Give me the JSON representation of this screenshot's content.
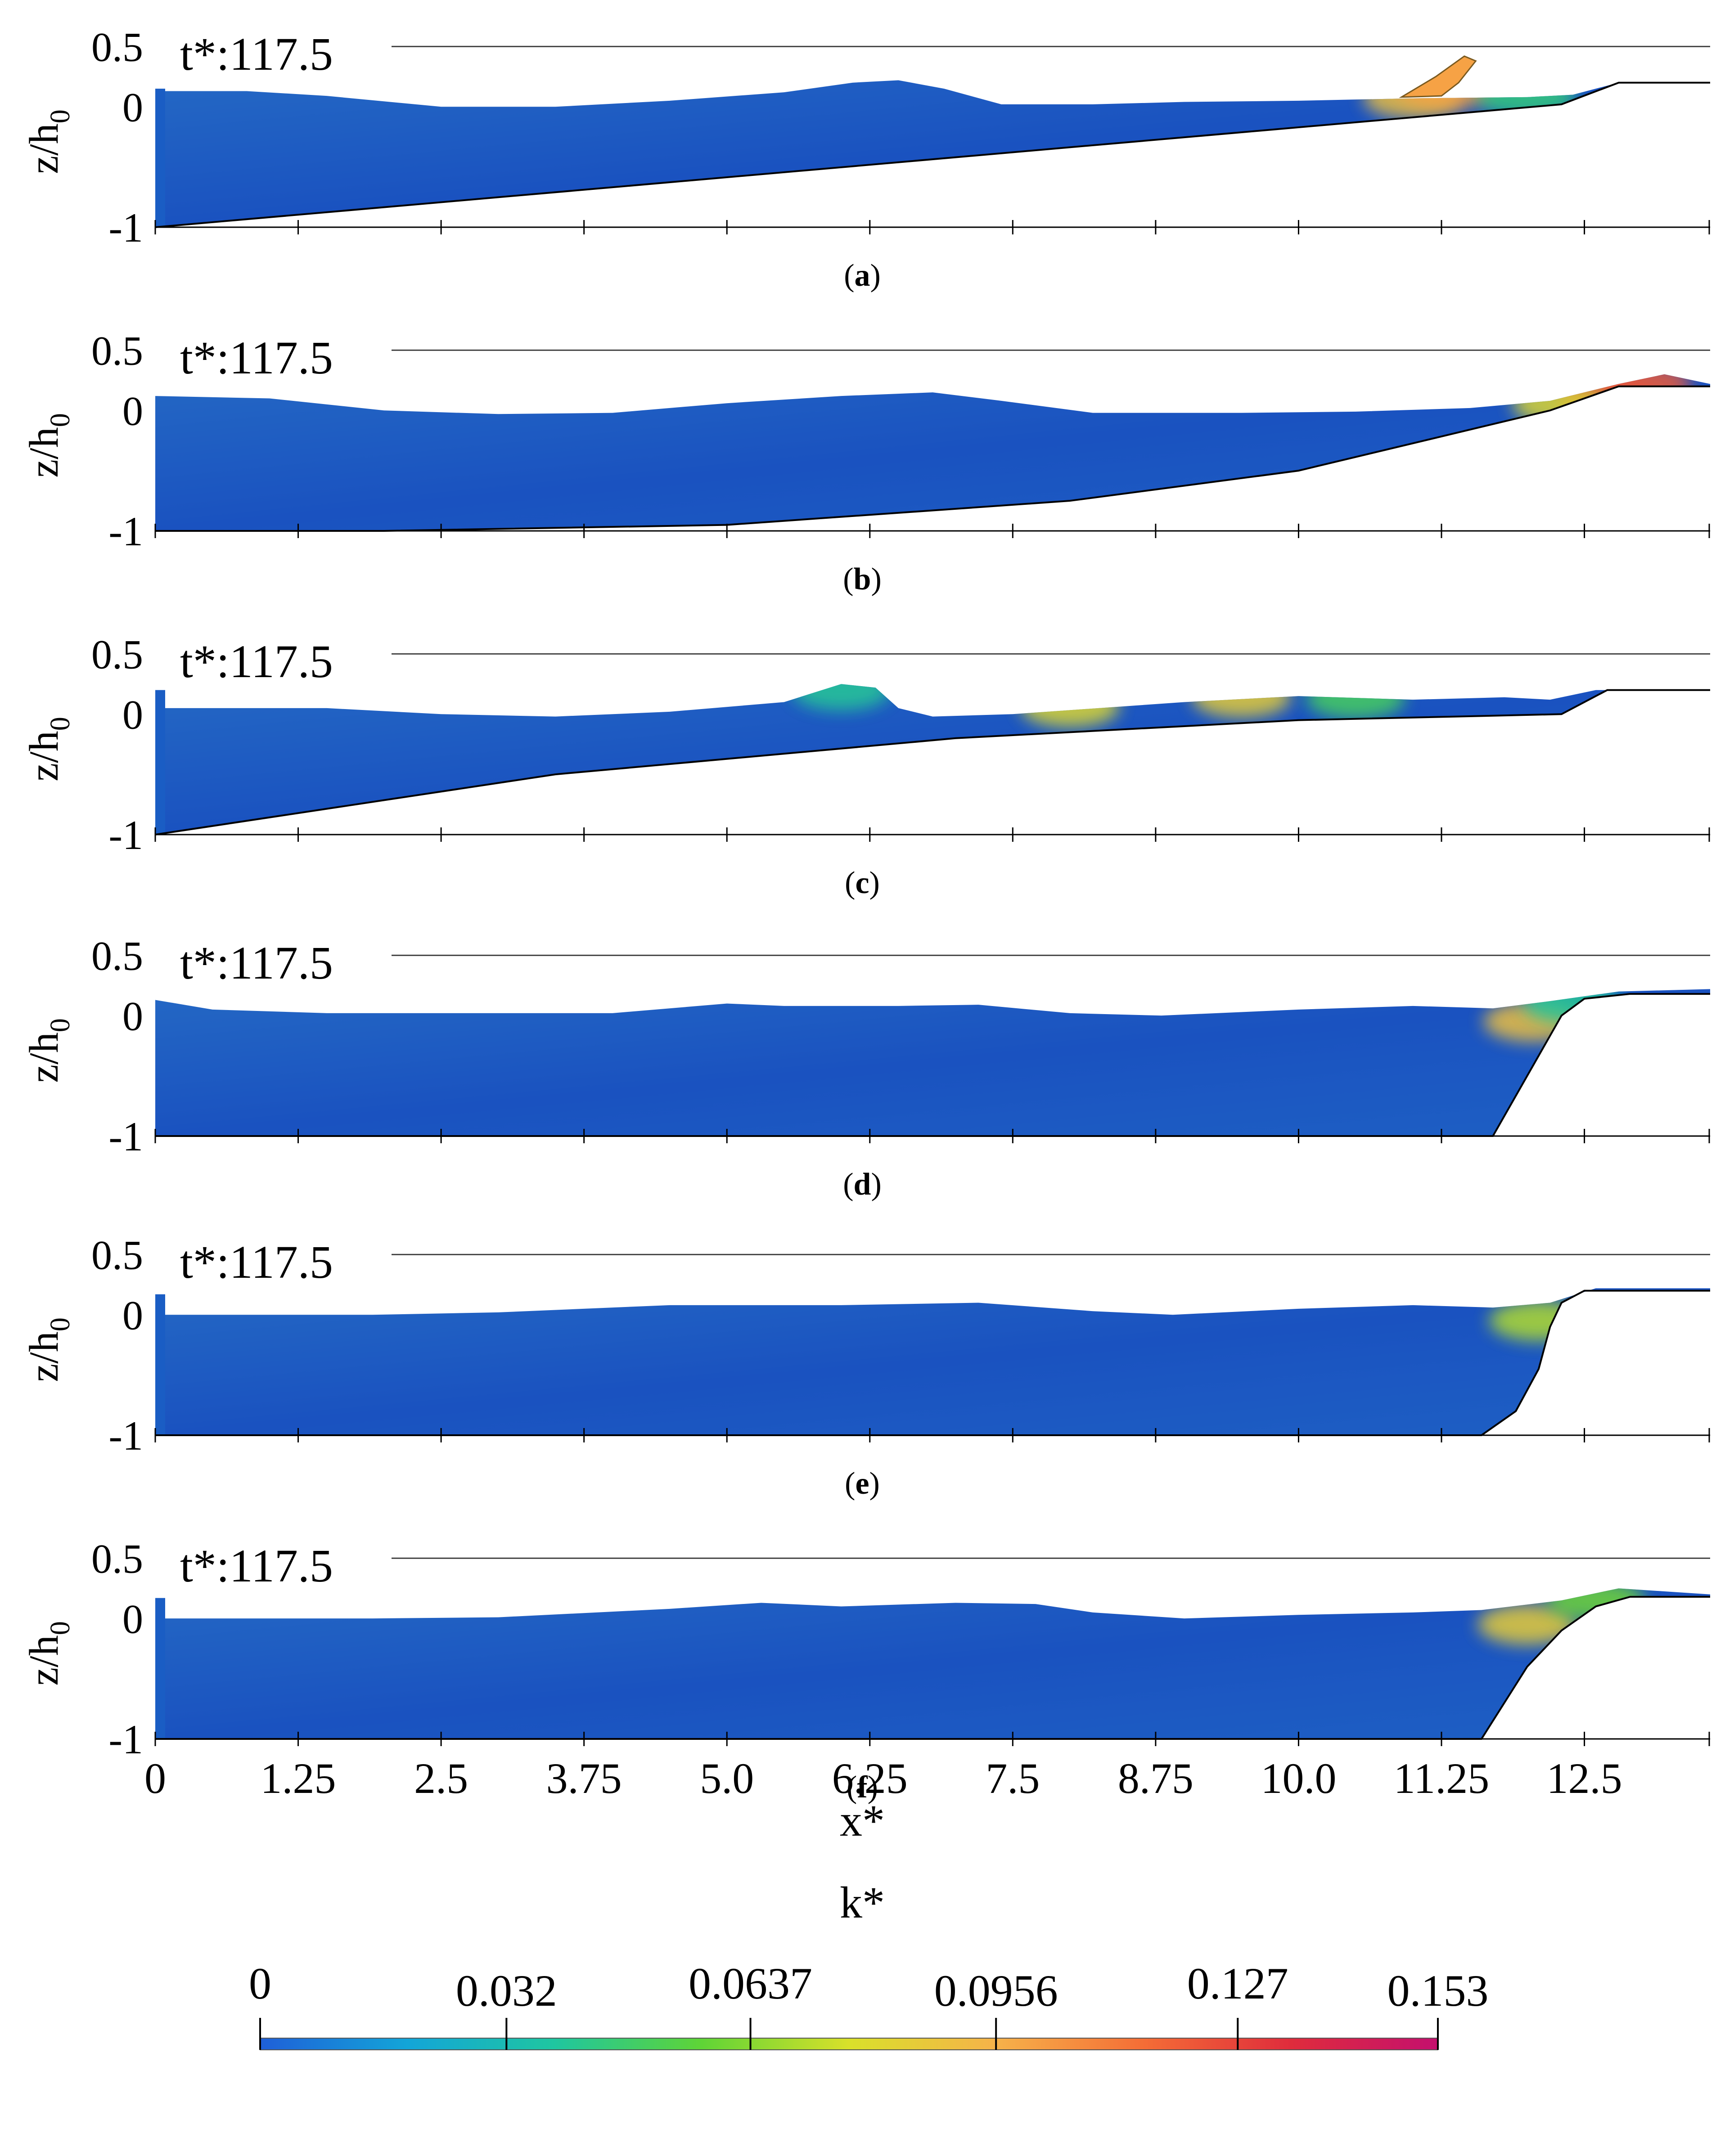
{
  "chart_data": {
    "type": "area",
    "y_axis_label": "z/h",
    "y_axis_label_sub": "0",
    "y_ticks": [
      "0.5",
      "0",
      "-1"
    ],
    "y_tick_values": [
      0.5,
      0,
      -1
    ],
    "x_label": "x*",
    "x_ticks": [
      "0",
      "1.25",
      "2.5",
      "3.75",
      "5.0",
      "6.25",
      "7.5",
      "8.75",
      "10.0",
      "11.25",
      "12.5"
    ],
    "x_tick_values": [
      0,
      1.25,
      2.5,
      3.75,
      5.0,
      6.25,
      7.5,
      8.75,
      10.0,
      11.25,
      12.5
    ],
    "x_range": [
      0,
      13.6
    ],
    "y_range": [
      -1,
      0.55
    ],
    "panels": [
      {
        "caption": "a",
        "time_label": "t*:117.5",
        "wall": [
          0,
          0.15
        ],
        "surface": [
          [
            0,
            0.13
          ],
          [
            0.8,
            0.13
          ],
          [
            1.5,
            0.09
          ],
          [
            2.5,
            0.0
          ],
          [
            3.5,
            0.0
          ],
          [
            4.5,
            0.05
          ],
          [
            5.5,
            0.12
          ],
          [
            6.1,
            0.2
          ],
          [
            6.5,
            0.22
          ],
          [
            6.9,
            0.15
          ],
          [
            7.4,
            0.02
          ],
          [
            8.2,
            0.02
          ],
          [
            9,
            0.04
          ],
          [
            10,
            0.05
          ],
          [
            11,
            0.07
          ],
          [
            12.0,
            0.08
          ],
          [
            12.4,
            0.1
          ],
          [
            12.8,
            0.2
          ],
          [
            13.6,
            0.2
          ]
        ],
        "bed": [
          [
            0,
            -1
          ],
          [
            12.3,
            0.02
          ],
          [
            12.8,
            0.2
          ],
          [
            13.6,
            0.2
          ]
        ],
        "hotspots": [
          {
            "x": 11.0,
            "z": 0.07,
            "k": 0.09
          },
          {
            "x": 11.3,
            "z": 0.15,
            "k": 0.1
          },
          {
            "x": 12.0,
            "z": 0.08,
            "k": 0.045
          }
        ],
        "crest": [
          [
            10.9,
            0.08
          ],
          [
            11.2,
            0.25
          ],
          [
            11.45,
            0.42
          ],
          [
            11.55,
            0.38
          ],
          [
            11.4,
            0.2
          ],
          [
            11.25,
            0.09
          ]
        ]
      },
      {
        "caption": "b",
        "time_label": "t*:117.5",
        "wall": null,
        "surface": [
          [
            0,
            0.12
          ],
          [
            1,
            0.1
          ],
          [
            2,
            0.0
          ],
          [
            3,
            -0.03
          ],
          [
            4,
            -0.02
          ],
          [
            5,
            0.06
          ],
          [
            6,
            0.12
          ],
          [
            6.8,
            0.15
          ],
          [
            7.4,
            0.08
          ],
          [
            8.2,
            -0.02
          ],
          [
            9.5,
            -0.02
          ],
          [
            10.5,
            -0.01
          ],
          [
            11.5,
            0.02
          ],
          [
            12.2,
            0.08
          ],
          [
            12.8,
            0.22
          ],
          [
            13.2,
            0.3
          ],
          [
            13.6,
            0.22
          ]
        ],
        "bed": [
          [
            0,
            -1
          ],
          [
            2,
            -1.0
          ],
          [
            5,
            -0.95
          ],
          [
            8,
            -0.75
          ],
          [
            10,
            -0.5
          ],
          [
            12.2,
            0.0
          ],
          [
            12.8,
            0.2
          ],
          [
            13.6,
            0.2
          ]
        ],
        "hotspots": [
          {
            "x": 12.7,
            "z": 0.1,
            "k": 0.13
          },
          {
            "x": 13.0,
            "z": 0.22,
            "k": 0.12
          },
          {
            "x": 12.3,
            "z": 0.05,
            "k": 0.08
          }
        ],
        "crest": []
      },
      {
        "caption": "c",
        "time_label": "t*:117.5",
        "wall": [
          0,
          0.2
        ],
        "surface": [
          [
            0,
            0.05
          ],
          [
            1.5,
            0.05
          ],
          [
            2.5,
            0.0
          ],
          [
            3.5,
            -0.02
          ],
          [
            4.5,
            0.02
          ],
          [
            5.5,
            0.1
          ],
          [
            6.0,
            0.25
          ],
          [
            6.3,
            0.22
          ],
          [
            6.5,
            0.05
          ],
          [
            6.8,
            -0.02
          ],
          [
            7.5,
            0.0
          ],
          [
            9,
            0.1
          ],
          [
            10,
            0.15
          ],
          [
            11,
            0.12
          ],
          [
            11.8,
            0.14
          ],
          [
            12.2,
            0.12
          ],
          [
            12.6,
            0.2
          ],
          [
            13.6,
            0.2
          ]
        ],
        "bed": [
          [
            0,
            -1
          ],
          [
            3.5,
            -0.5
          ],
          [
            7,
            -0.2
          ],
          [
            10,
            -0.05
          ],
          [
            12.3,
            0.0
          ],
          [
            12.7,
            0.2
          ],
          [
            13.6,
            0.2
          ]
        ],
        "hotspots": [
          {
            "x": 6.0,
            "z": 0.2,
            "k": 0.04
          },
          {
            "x": 8.0,
            "z": 0.06,
            "k": 0.08
          },
          {
            "x": 9.5,
            "z": 0.14,
            "k": 0.085
          },
          {
            "x": 10.5,
            "z": 0.13,
            "k": 0.05
          }
        ],
        "crest": []
      },
      {
        "caption": "d",
        "time_label": "t*:117.5",
        "wall": null,
        "surface": [
          [
            0,
            0.13
          ],
          [
            0.5,
            0.05
          ],
          [
            1.5,
            0.02
          ],
          [
            3,
            0.02
          ],
          [
            4,
            0.02
          ],
          [
            5,
            0.1
          ],
          [
            5.5,
            0.08
          ],
          [
            6.5,
            0.08
          ],
          [
            7.2,
            0.09
          ],
          [
            8,
            0.02
          ],
          [
            8.8,
            0.0
          ],
          [
            10,
            0.05
          ],
          [
            11,
            0.08
          ],
          [
            11.7,
            0.06
          ],
          [
            12.2,
            0.12
          ],
          [
            12.8,
            0.2
          ],
          [
            13.6,
            0.22
          ]
        ],
        "bed": [
          [
            0,
            -1
          ],
          [
            11.7,
            -1
          ],
          [
            12.3,
            0.0
          ],
          [
            12.5,
            0.14
          ],
          [
            12.9,
            0.18
          ],
          [
            13.6,
            0.18
          ]
        ],
        "hotspots": [
          {
            "x": 12.05,
            "z": -0.05,
            "k": 0.09
          },
          {
            "x": 12.4,
            "z": 0.1,
            "k": 0.04
          }
        ],
        "crest": []
      },
      {
        "caption": "e",
        "time_label": "t*:117.5",
        "wall": [
          0,
          0.17
        ],
        "surface": [
          [
            0,
            0.0
          ],
          [
            1.9,
            0.0
          ],
          [
            3,
            0.02
          ],
          [
            4.5,
            0.08
          ],
          [
            6,
            0.08
          ],
          [
            7.2,
            0.1
          ],
          [
            8.2,
            0.03
          ],
          [
            8.9,
            0.0
          ],
          [
            10,
            0.05
          ],
          [
            11,
            0.08
          ],
          [
            11.7,
            0.06
          ],
          [
            12.2,
            0.1
          ],
          [
            12.6,
            0.22
          ],
          [
            13.6,
            0.22
          ]
        ],
        "bed": [
          [
            0,
            -1
          ],
          [
            11.6,
            -1
          ],
          [
            11.9,
            -0.8
          ],
          [
            12.1,
            -0.45
          ],
          [
            12.2,
            -0.1
          ],
          [
            12.3,
            0.1
          ],
          [
            12.5,
            0.2
          ],
          [
            12.9,
            0.2
          ],
          [
            13.6,
            0.2
          ]
        ],
        "hotspots": [
          {
            "x": 12.1,
            "z": -0.05,
            "k": 0.07
          }
        ],
        "crest": []
      },
      {
        "caption": "f",
        "time_label": "t*:117.5",
        "wall": [
          0,
          0.17
        ],
        "surface": [
          [
            0,
            0.0
          ],
          [
            1.9,
            0.0
          ],
          [
            3,
            0.01
          ],
          [
            4.5,
            0.08
          ],
          [
            5.3,
            0.13
          ],
          [
            6,
            0.1
          ],
          [
            7,
            0.13
          ],
          [
            7.7,
            0.12
          ],
          [
            8.2,
            0.05
          ],
          [
            9,
            0.0
          ],
          [
            10,
            0.03
          ],
          [
            11,
            0.05
          ],
          [
            11.6,
            0.07
          ],
          [
            12.3,
            0.15
          ],
          [
            12.8,
            0.25
          ],
          [
            13.6,
            0.2
          ]
        ],
        "bed": [
          [
            0,
            -1
          ],
          [
            11.6,
            -1
          ],
          [
            11.8,
            -0.7
          ],
          [
            12.0,
            -0.4
          ],
          [
            12.3,
            -0.1
          ],
          [
            12.6,
            0.1
          ],
          [
            12.9,
            0.18
          ],
          [
            13.6,
            0.18
          ]
        ],
        "hotspots": [
          {
            "x": 12.0,
            "z": -0.05,
            "k": 0.085
          },
          {
            "x": 12.6,
            "z": 0.15,
            "k": 0.06
          }
        ],
        "crest": []
      }
    ],
    "colorbar": {
      "title": "k*",
      "ticks": [
        "0",
        "0.032",
        "0.0637",
        "0.0956",
        "0.127",
        "0.153"
      ],
      "tick_values": [
        0,
        0.032,
        0.0637,
        0.0956,
        0.127,
        0.153
      ],
      "range": [
        0,
        0.153
      ],
      "colors": [
        "#1f5fd8",
        "#13a5d8",
        "#1fc6a0",
        "#5fd436",
        "#d9e02a",
        "#f6b24a",
        "#f46d36",
        "#df2c3c",
        "#c4106e"
      ]
    }
  },
  "colors": {
    "water_base": "#1a56c2",
    "water_light": "#2a72c4",
    "frame": "#000000",
    "ref_line": "#444444"
  }
}
